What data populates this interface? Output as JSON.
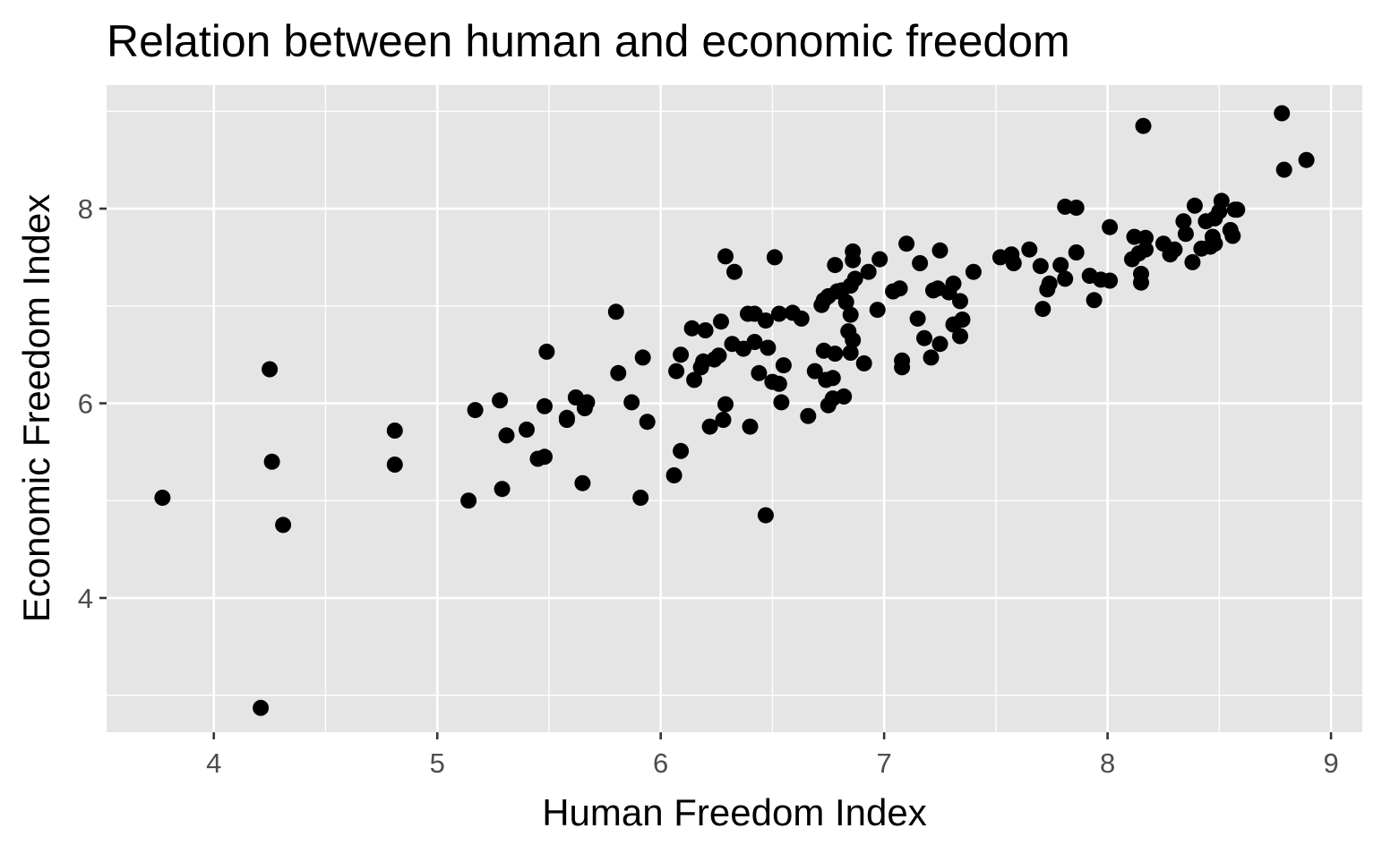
{
  "chart_data": {
    "type": "scatter",
    "title": "Relation between human and economic freedom",
    "xlabel": "Human Freedom Index",
    "ylabel": "Economic Freedom Index",
    "xlim": [
      3.52,
      9.14
    ],
    "ylim": [
      2.62,
      9.27
    ],
    "x_major_ticks": [
      4,
      5,
      6,
      7,
      8,
      9
    ],
    "y_major_ticks": [
      4,
      6,
      8
    ],
    "x_tick_labels": [
      "4",
      "5",
      "6",
      "7",
      "8",
      "9"
    ],
    "y_tick_labels": [
      "4",
      "6",
      "8"
    ],
    "grid": true,
    "points": [
      [
        3.77,
        5.03
      ],
      [
        4.21,
        2.87
      ],
      [
        4.25,
        6.35
      ],
      [
        4.26,
        5.4
      ],
      [
        4.31,
        4.75
      ],
      [
        4.81,
        5.72
      ],
      [
        4.81,
        5.37
      ],
      [
        5.14,
        5.0
      ],
      [
        5.17,
        5.93
      ],
      [
        5.28,
        6.03
      ],
      [
        5.29,
        5.12
      ],
      [
        5.31,
        5.67
      ],
      [
        5.4,
        5.73
      ],
      [
        5.45,
        5.43
      ],
      [
        5.48,
        5.45
      ],
      [
        5.48,
        5.97
      ],
      [
        5.49,
        6.53
      ],
      [
        5.58,
        5.85
      ],
      [
        5.58,
        5.83
      ],
      [
        5.62,
        6.06
      ],
      [
        5.65,
        5.18
      ],
      [
        5.66,
        5.95
      ],
      [
        5.67,
        6.01
      ],
      [
        5.8,
        6.94
      ],
      [
        5.81,
        6.31
      ],
      [
        5.87,
        6.01
      ],
      [
        5.91,
        5.03
      ],
      [
        5.92,
        6.47
      ],
      [
        5.94,
        5.81
      ],
      [
        6.06,
        5.26
      ],
      [
        6.07,
        6.33
      ],
      [
        6.09,
        5.51
      ],
      [
        6.09,
        6.5
      ],
      [
        6.14,
        6.77
      ],
      [
        6.15,
        6.24
      ],
      [
        6.18,
        6.37
      ],
      [
        6.19,
        6.43
      ],
      [
        6.2,
        6.75
      ],
      [
        6.22,
        5.76
      ],
      [
        6.24,
        6.45
      ],
      [
        6.26,
        6.49
      ],
      [
        6.27,
        6.84
      ],
      [
        6.28,
        5.83
      ],
      [
        6.29,
        5.99
      ],
      [
        6.29,
        7.51
      ],
      [
        6.32,
        6.61
      ],
      [
        6.33,
        7.35
      ],
      [
        6.37,
        6.56
      ],
      [
        6.39,
        6.92
      ],
      [
        6.4,
        5.76
      ],
      [
        6.42,
        6.92
      ],
      [
        6.42,
        6.63
      ],
      [
        6.44,
        6.31
      ],
      [
        6.47,
        6.85
      ],
      [
        6.47,
        4.85
      ],
      [
        6.48,
        6.57
      ],
      [
        6.5,
        6.22
      ],
      [
        6.51,
        7.5
      ],
      [
        6.53,
        6.2
      ],
      [
        6.53,
        6.92
      ],
      [
        6.54,
        6.01
      ],
      [
        6.55,
        6.39
      ],
      [
        6.59,
        6.93
      ],
      [
        6.63,
        6.87
      ],
      [
        6.66,
        5.87
      ],
      [
        6.69,
        6.33
      ],
      [
        6.72,
        7.01
      ],
      [
        6.73,
        6.54
      ],
      [
        6.73,
        7.06
      ],
      [
        6.74,
        6.24
      ],
      [
        6.75,
        7.1
      ],
      [
        6.75,
        5.98
      ],
      [
        6.77,
        6.26
      ],
      [
        6.77,
        6.05
      ],
      [
        6.78,
        6.51
      ],
      [
        6.78,
        7.42
      ],
      [
        6.79,
        7.15
      ],
      [
        6.81,
        7.16
      ],
      [
        6.82,
        6.07
      ],
      [
        6.83,
        7.04
      ],
      [
        6.84,
        6.74
      ],
      [
        6.85,
        7.21
      ],
      [
        6.85,
        6.52
      ],
      [
        6.85,
        6.91
      ],
      [
        6.86,
        6.65
      ],
      [
        6.86,
        7.47
      ],
      [
        6.86,
        7.56
      ],
      [
        6.87,
        7.28
      ],
      [
        6.91,
        6.41
      ],
      [
        6.93,
        7.35
      ],
      [
        6.97,
        6.96
      ],
      [
        6.98,
        7.48
      ],
      [
        7.04,
        7.15
      ],
      [
        7.07,
        7.18
      ],
      [
        7.08,
        6.44
      ],
      [
        7.08,
        6.37
      ],
      [
        7.1,
        7.64
      ],
      [
        7.15,
        6.87
      ],
      [
        7.16,
        7.44
      ],
      [
        7.18,
        6.67
      ],
      [
        7.21,
        6.47
      ],
      [
        7.22,
        7.16
      ],
      [
        7.24,
        7.18
      ],
      [
        7.25,
        6.61
      ],
      [
        7.25,
        7.57
      ],
      [
        7.29,
        7.14
      ],
      [
        7.31,
        7.23
      ],
      [
        7.31,
        6.81
      ],
      [
        7.34,
        6.69
      ],
      [
        7.34,
        7.05
      ],
      [
        7.35,
        6.86
      ],
      [
        7.4,
        7.35
      ],
      [
        7.52,
        7.5
      ],
      [
        7.57,
        7.53
      ],
      [
        7.58,
        7.44
      ],
      [
        7.65,
        7.58
      ],
      [
        7.7,
        7.41
      ],
      [
        7.71,
        6.97
      ],
      [
        7.73,
        7.17
      ],
      [
        7.74,
        7.23
      ],
      [
        7.79,
        7.42
      ],
      [
        7.81,
        8.02
      ],
      [
        7.81,
        7.28
      ],
      [
        7.86,
        7.55
      ],
      [
        7.86,
        8.01
      ],
      [
        7.92,
        7.31
      ],
      [
        7.94,
        7.06
      ],
      [
        7.97,
        7.27
      ],
      [
        8.01,
        7.26
      ],
      [
        8.01,
        7.81
      ],
      [
        8.11,
        7.48
      ],
      [
        8.12,
        7.71
      ],
      [
        8.14,
        7.54
      ],
      [
        8.15,
        7.24
      ],
      [
        8.15,
        7.33
      ],
      [
        8.16,
        8.85
      ],
      [
        8.17,
        7.58
      ],
      [
        8.17,
        7.7
      ],
      [
        8.25,
        7.64
      ],
      [
        8.28,
        7.53
      ],
      [
        8.3,
        7.58
      ],
      [
        8.34,
        7.87
      ],
      [
        8.35,
        7.74
      ],
      [
        8.38,
        7.45
      ],
      [
        8.39,
        8.03
      ],
      [
        8.42,
        7.59
      ],
      [
        8.44,
        7.87
      ],
      [
        8.46,
        7.61
      ],
      [
        8.47,
        7.71
      ],
      [
        8.48,
        7.64
      ],
      [
        8.48,
        7.9
      ],
      [
        8.5,
        7.97
      ],
      [
        8.51,
        8.08
      ],
      [
        8.55,
        7.78
      ],
      [
        8.56,
        7.72
      ],
      [
        8.57,
        7.99
      ],
      [
        8.58,
        7.99
      ],
      [
        8.78,
        8.98
      ],
      [
        8.79,
        8.4
      ],
      [
        8.89,
        8.5
      ]
    ]
  }
}
